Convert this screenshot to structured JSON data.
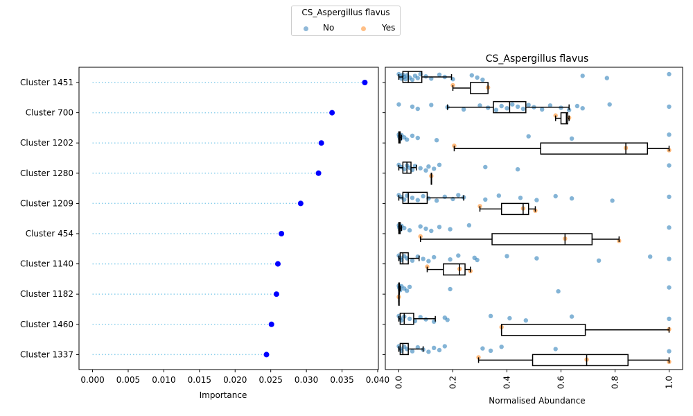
{
  "legend": {
    "title": "CS_Aspergillus flavus",
    "entries": [
      {
        "label": "No",
        "color": "#1f77b4"
      },
      {
        "label": "Yes",
        "color": "#ff7f0e"
      }
    ]
  },
  "chart_data": [
    {
      "type": "lollipop",
      "title": "",
      "xlabel": "Importance",
      "ylabel": "",
      "xlim": [
        -0.0019,
        0.0401
      ],
      "xticks": [
        "0.000",
        "0.005",
        "0.010",
        "0.015",
        "0.020",
        "0.025",
        "0.030",
        "0.035",
        "0.040"
      ],
      "xtick_values": [
        0,
        0.005,
        0.01,
        0.015,
        0.02,
        0.025,
        0.03,
        0.035,
        0.04
      ],
      "categories": [
        "Cluster 1451",
        "Cluster 700",
        "Cluster 1202",
        "Cluster 1280",
        "Cluster 1209",
        "Cluster 454",
        "Cluster 1140",
        "Cluster 1182",
        "Cluster 1460",
        "Cluster 1337"
      ],
      "values": [
        0.0382,
        0.0336,
        0.0321,
        0.0317,
        0.0292,
        0.0265,
        0.026,
        0.0258,
        0.0251,
        0.0244
      ],
      "marker_color": "#0000ff",
      "line_color": "#87ceeb",
      "grid": false
    },
    {
      "type": "box-strip",
      "title": "CS_Aspergillus flavus",
      "xlabel": "Normalised Abundance",
      "ylabel": "",
      "xlim": [
        -0.05,
        1.05
      ],
      "xticks": [
        "0.0",
        "0.2",
        "0.4",
        "0.6",
        "0.8",
        "1.0"
      ],
      "xtick_values": [
        0,
        0.2,
        0.4,
        0.6,
        0.8,
        1.0
      ],
      "categories": [
        "Cluster 1451",
        "Cluster 700",
        "Cluster 1202",
        "Cluster 1280",
        "Cluster 1209",
        "Cluster 454",
        "Cluster 1140",
        "Cluster 1182",
        "Cluster 1460",
        "Cluster 1337"
      ],
      "grid": false,
      "groups": [
        "No",
        "Yes"
      ],
      "boxes": {
        "No": [
          {
            "whislo": 0,
            "q1": 0.015,
            "med": 0.035,
            "q3": 0.085,
            "whishi": 0.195
          },
          {
            "whislo": 0.18,
            "q1": 0.35,
            "med": 0.41,
            "q3": 0.47,
            "whishi": 0.63
          },
          {
            "whislo": 0,
            "q1": 0,
            "med": 0.002,
            "q3": 0.005,
            "whishi": 0.01
          },
          {
            "whislo": 0,
            "q1": 0.015,
            "med": 0.03,
            "q3": 0.045,
            "whishi": 0.065
          },
          {
            "whislo": 0,
            "q1": 0.015,
            "med": 0.035,
            "q3": 0.105,
            "whishi": 0.24
          },
          {
            "whislo": 0,
            "q1": 0,
            "med": 0.002,
            "q3": 0.005,
            "whishi": 0.01
          },
          {
            "whislo": 0,
            "q1": 0.005,
            "med": 0.015,
            "q3": 0.035,
            "whishi": 0.075
          },
          {
            "whislo": 0,
            "q1": 0,
            "med": 0,
            "q3": 0.002,
            "whishi": 0.005
          },
          {
            "whislo": 0,
            "q1": 0.005,
            "med": 0.02,
            "q3": 0.055,
            "whishi": 0.135
          },
          {
            "whislo": 0,
            "q1": 0.005,
            "med": 0.015,
            "q3": 0.035,
            "whishi": 0.09
          }
        ],
        "Yes": [
          {
            "whislo": 0.2,
            "q1": 0.265,
            "med": 0.33,
            "q3": 0.33,
            "whishi": 0.33
          },
          {
            "whislo": 0.58,
            "q1": 0.6,
            "med": 0.62,
            "q3": 0.625,
            "whishi": 0.63
          },
          {
            "whislo": 0.205,
            "q1": 0.525,
            "med": 0.84,
            "q3": 0.92,
            "whishi": 1.0
          },
          {
            "whislo": 0.12,
            "q1": 0.12,
            "med": 0.12,
            "q3": 0.12,
            "whishi": 0.12
          },
          {
            "whislo": 0.3,
            "q1": 0.38,
            "med": 0.46,
            "q3": 0.48,
            "whishi": 0.505
          },
          {
            "whislo": 0.08,
            "q1": 0.345,
            "med": 0.615,
            "q3": 0.715,
            "whishi": 0.815
          },
          {
            "whislo": 0.105,
            "q1": 0.165,
            "med": 0.225,
            "q3": 0.245,
            "whishi": 0.265
          },
          {
            "whislo": 0,
            "q1": 0,
            "med": 0,
            "q3": 0,
            "whishi": 0
          },
          {
            "whislo": 0.38,
            "q1": 0.38,
            "med": 0.38,
            "q3": 0.69,
            "whishi": 1.0
          },
          {
            "whislo": 0.295,
            "q1": 0.495,
            "med": 0.695,
            "q3": 0.848,
            "whishi": 1.0
          }
        ]
      },
      "points": {
        "No": [
          [
            0,
            0.005,
            0.01,
            0.015,
            0.02,
            0.025,
            0.03,
            0.04,
            0.05,
            0.06,
            0.07,
            0.08,
            0.1,
            0.12,
            0.15,
            0.17,
            0.2,
            0.27,
            0.29,
            0.31,
            0.68,
            0.77,
            1.0
          ],
          [
            0,
            0.05,
            0.07,
            0.12,
            0.18,
            0.24,
            0.3,
            0.33,
            0.36,
            0.38,
            0.4,
            0.42,
            0.44,
            0.46,
            0.48,
            0.5,
            0.53,
            0.56,
            0.6,
            0.63,
            0.66,
            0.68,
            0.78,
            1.0
          ],
          [
            0,
            0.002,
            0.005,
            0.01,
            0.02,
            0.03,
            0.05,
            0.07,
            0.14,
            0.48,
            0.64,
            1.0
          ],
          [
            0,
            0.01,
            0.02,
            0.03,
            0.04,
            0.05,
            0.06,
            0.08,
            0.1,
            0.11,
            0.13,
            0.15,
            0.32,
            0.44,
            1.0
          ],
          [
            0,
            0.01,
            0.02,
            0.03,
            0.05,
            0.07,
            0.09,
            0.11,
            0.14,
            0.17,
            0.2,
            0.22,
            0.24,
            0.32,
            0.37,
            0.45,
            0.51,
            0.58,
            0.64,
            0.79,
            1.0
          ],
          [
            0,
            0.002,
            0.005,
            0.01,
            0.02,
            0.04,
            0.08,
            0.1,
            0.12,
            0.15,
            0.19,
            0.26,
            1.0
          ],
          [
            0,
            0.005,
            0.01,
            0.02,
            0.03,
            0.05,
            0.07,
            0.09,
            0.11,
            0.13,
            0.19,
            0.22,
            0.28,
            0.29,
            0.4,
            0.51,
            0.74,
            0.93,
            1.0
          ],
          [
            0,
            0.002,
            0.005,
            0.01,
            0.02,
            0.03,
            0.04,
            0.19,
            0.59,
            1.0
          ],
          [
            0,
            0.005,
            0.01,
            0.02,
            0.04,
            0.06,
            0.08,
            0.1,
            0.13,
            0.17,
            0.18,
            0.34,
            0.41,
            0.47,
            0.64,
            1.0
          ],
          [
            0,
            0.005,
            0.01,
            0.02,
            0.03,
            0.05,
            0.07,
            0.09,
            0.11,
            0.13,
            0.15,
            0.17,
            0.31,
            0.34,
            0.38,
            0.58,
            1.0
          ]
        ],
        "Yes": [
          [
            0.2,
            0.33
          ],
          [
            0.58,
            0.63
          ],
          [
            0.205,
            0.84,
            1.0
          ],
          [
            0.12
          ],
          [
            0.3,
            0.46,
            0.505
          ],
          [
            0.08,
            0.615,
            0.815
          ],
          [
            0.105,
            0.225,
            0.265
          ],
          [
            0
          ],
          [
            0.38,
            1.0
          ],
          [
            0.295,
            0.695,
            1.0
          ]
        ]
      }
    }
  ]
}
